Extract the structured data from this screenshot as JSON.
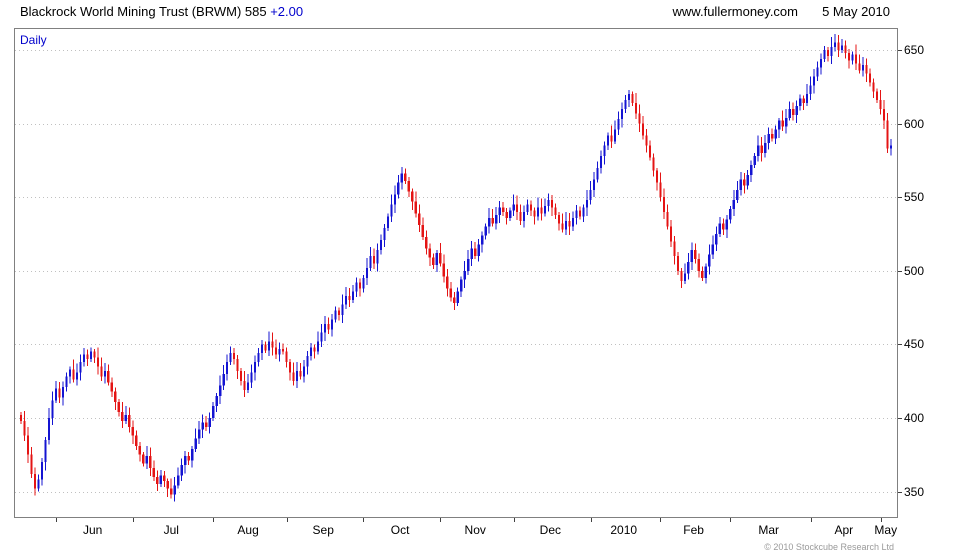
{
  "header": {
    "title": "Blackrock World Mining Trust (BRWM) 585",
    "change": "+2.00",
    "website": "www.fullermoney.com",
    "date": "5 May 2010"
  },
  "chart": {
    "frequency_label": "Daily",
    "copyright": "© 2010 Stockcube Research Ltd"
  },
  "chart_data": {
    "type": "candlestick",
    "title": "Blackrock World Mining Trust (BRWM) daily price",
    "last_price": 585,
    "change": 2.0,
    "ylim": [
      332,
      665
    ],
    "yticks": [
      350,
      400,
      450,
      500,
      550,
      600,
      650
    ],
    "grid": "dotted-horizontal",
    "open_rule": "previous_close",
    "up_color": "#1414d2",
    "down_color": "#e41414",
    "grid_color": "#c0c0c0",
    "axis_color": "#808080",
    "months": [
      {
        "label": "Jun",
        "start": 10
      },
      {
        "label": "Jul",
        "start": 32
      },
      {
        "label": "Aug",
        "start": 55
      },
      {
        "label": "Sep",
        "start": 76
      },
      {
        "label": "Oct",
        "start": 98
      },
      {
        "label": "Nov",
        "start": 120
      },
      {
        "label": "Dec",
        "start": 141
      },
      {
        "label": "2010",
        "start": 163
      },
      {
        "label": "Feb",
        "start": 183
      },
      {
        "label": "Mar",
        "start": 203
      },
      {
        "label": "Apr",
        "start": 226
      },
      {
        "label": "May",
        "start": 246
      }
    ],
    "closes": [
      398,
      388,
      375,
      362,
      352,
      358,
      370,
      385,
      400,
      412,
      420,
      414,
      421,
      428,
      433,
      426,
      431,
      438,
      443,
      440,
      445,
      441,
      435,
      428,
      432,
      424,
      418,
      411,
      404,
      398,
      402,
      394,
      388,
      381,
      375,
      369,
      374,
      366,
      360,
      355,
      361,
      357,
      352,
      348,
      354,
      361,
      368,
      374,
      371,
      379,
      386,
      392,
      397,
      394,
      400,
      408,
      415,
      422,
      430,
      438,
      444,
      440,
      432,
      425,
      419,
      424,
      431,
      438,
      444,
      450,
      446,
      452,
      448,
      443,
      447,
      445,
      438,
      431,
      425,
      432,
      428,
      435,
      442,
      448,
      445,
      452,
      458,
      464,
      460,
      467,
      473,
      470,
      477,
      483,
      480,
      486,
      492,
      488,
      495,
      502,
      510,
      505,
      514,
      521,
      529,
      537,
      545,
      552,
      560,
      566,
      561,
      554,
      547,
      539,
      531,
      523,
      515,
      509,
      504,
      512,
      505,
      496,
      488,
      482,
      478,
      486,
      494,
      500,
      508,
      515,
      510,
      518,
      524,
      530,
      536,
      532,
      538,
      543,
      540,
      536,
      541,
      545,
      540,
      534,
      540,
      545,
      541,
      537,
      543,
      539,
      544,
      548,
      543,
      538,
      532,
      528,
      534,
      530,
      536,
      541,
      537,
      543,
      548,
      555,
      562,
      570,
      578,
      585,
      592,
      588,
      596,
      603,
      610,
      616,
      620,
      614,
      607,
      600,
      592,
      585,
      577,
      568,
      560,
      550,
      540,
      530,
      520,
      510,
      500,
      493,
      498,
      506,
      514,
      508,
      500,
      495,
      503,
      511,
      518,
      525,
      532,
      528,
      535,
      542,
      548,
      555,
      562,
      558,
      565,
      572,
      578,
      585,
      580,
      587,
      593,
      590,
      596,
      602,
      598,
      604,
      610,
      606,
      612,
      617,
      614,
      620,
      626,
      632,
      638,
      644,
      650,
      646,
      652,
      655,
      650,
      653,
      648,
      643,
      647,
      641,
      636,
      640,
      634,
      628,
      622,
      616,
      610,
      602,
      583,
      585
    ]
  }
}
